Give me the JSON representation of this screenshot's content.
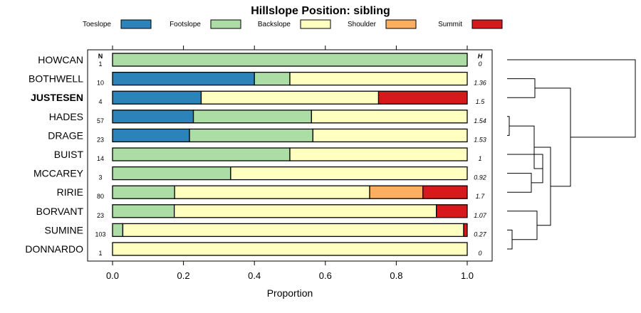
{
  "chart_data": {
    "type": "bar",
    "stacked": true,
    "orientation": "horizontal",
    "title": "Hillslope Position: sibling",
    "xlabel": "Proportion",
    "xlim": [
      0,
      1
    ],
    "xticks": [
      "0.0",
      "0.2",
      "0.4",
      "0.6",
      "0.8",
      "1.0"
    ],
    "n_header": "N",
    "h_header": "H",
    "legend_position": "top",
    "highlighted_category": "JUSTESEN",
    "categories": [
      "HOWCAN",
      "BOTHWELL",
      "JUSTESEN",
      "HADES",
      "DRAGE",
      "BUIST",
      "MCCAREY",
      "RIRIE",
      "BORVANT",
      "SUMINE",
      "DONNARDO"
    ],
    "n": [
      "1",
      "10",
      "4",
      "57",
      "23",
      "14",
      "3",
      "80",
      "23",
      "103",
      "1"
    ],
    "h": [
      "0",
      "1.36",
      "1.5",
      "1.54",
      "1.53",
      "1",
      "0.92",
      "1.7",
      "1.07",
      "0.27",
      "0"
    ],
    "series": [
      {
        "name": "Toeslope",
        "color": "#2B83BA",
        "values": [
          0,
          0.4,
          0.25,
          0.228,
          0.217,
          0,
          0,
          0,
          0,
          0,
          0
        ]
      },
      {
        "name": "Footslope",
        "color": "#ABDDA4",
        "values": [
          1.0,
          0.1,
          0,
          0.333,
          0.348,
          0.5,
          0.333,
          0.175,
          0.174,
          0.029,
          0
        ]
      },
      {
        "name": "Backslope",
        "color": "#FFFFBF",
        "values": [
          0,
          0.5,
          0.5,
          0.439,
          0.435,
          0.5,
          0.667,
          0.55,
          0.739,
          0.961,
          1.0
        ]
      },
      {
        "name": "Shoulder",
        "color": "#FDAE61",
        "values": [
          0,
          0,
          0,
          0,
          0,
          0,
          0,
          0.15,
          0,
          0,
          0
        ]
      },
      {
        "name": "Summit",
        "color": "#D7191C",
        "values": [
          0,
          0,
          0.25,
          0,
          0,
          0,
          0,
          0.125,
          0.087,
          0.01,
          0
        ]
      }
    ]
  }
}
